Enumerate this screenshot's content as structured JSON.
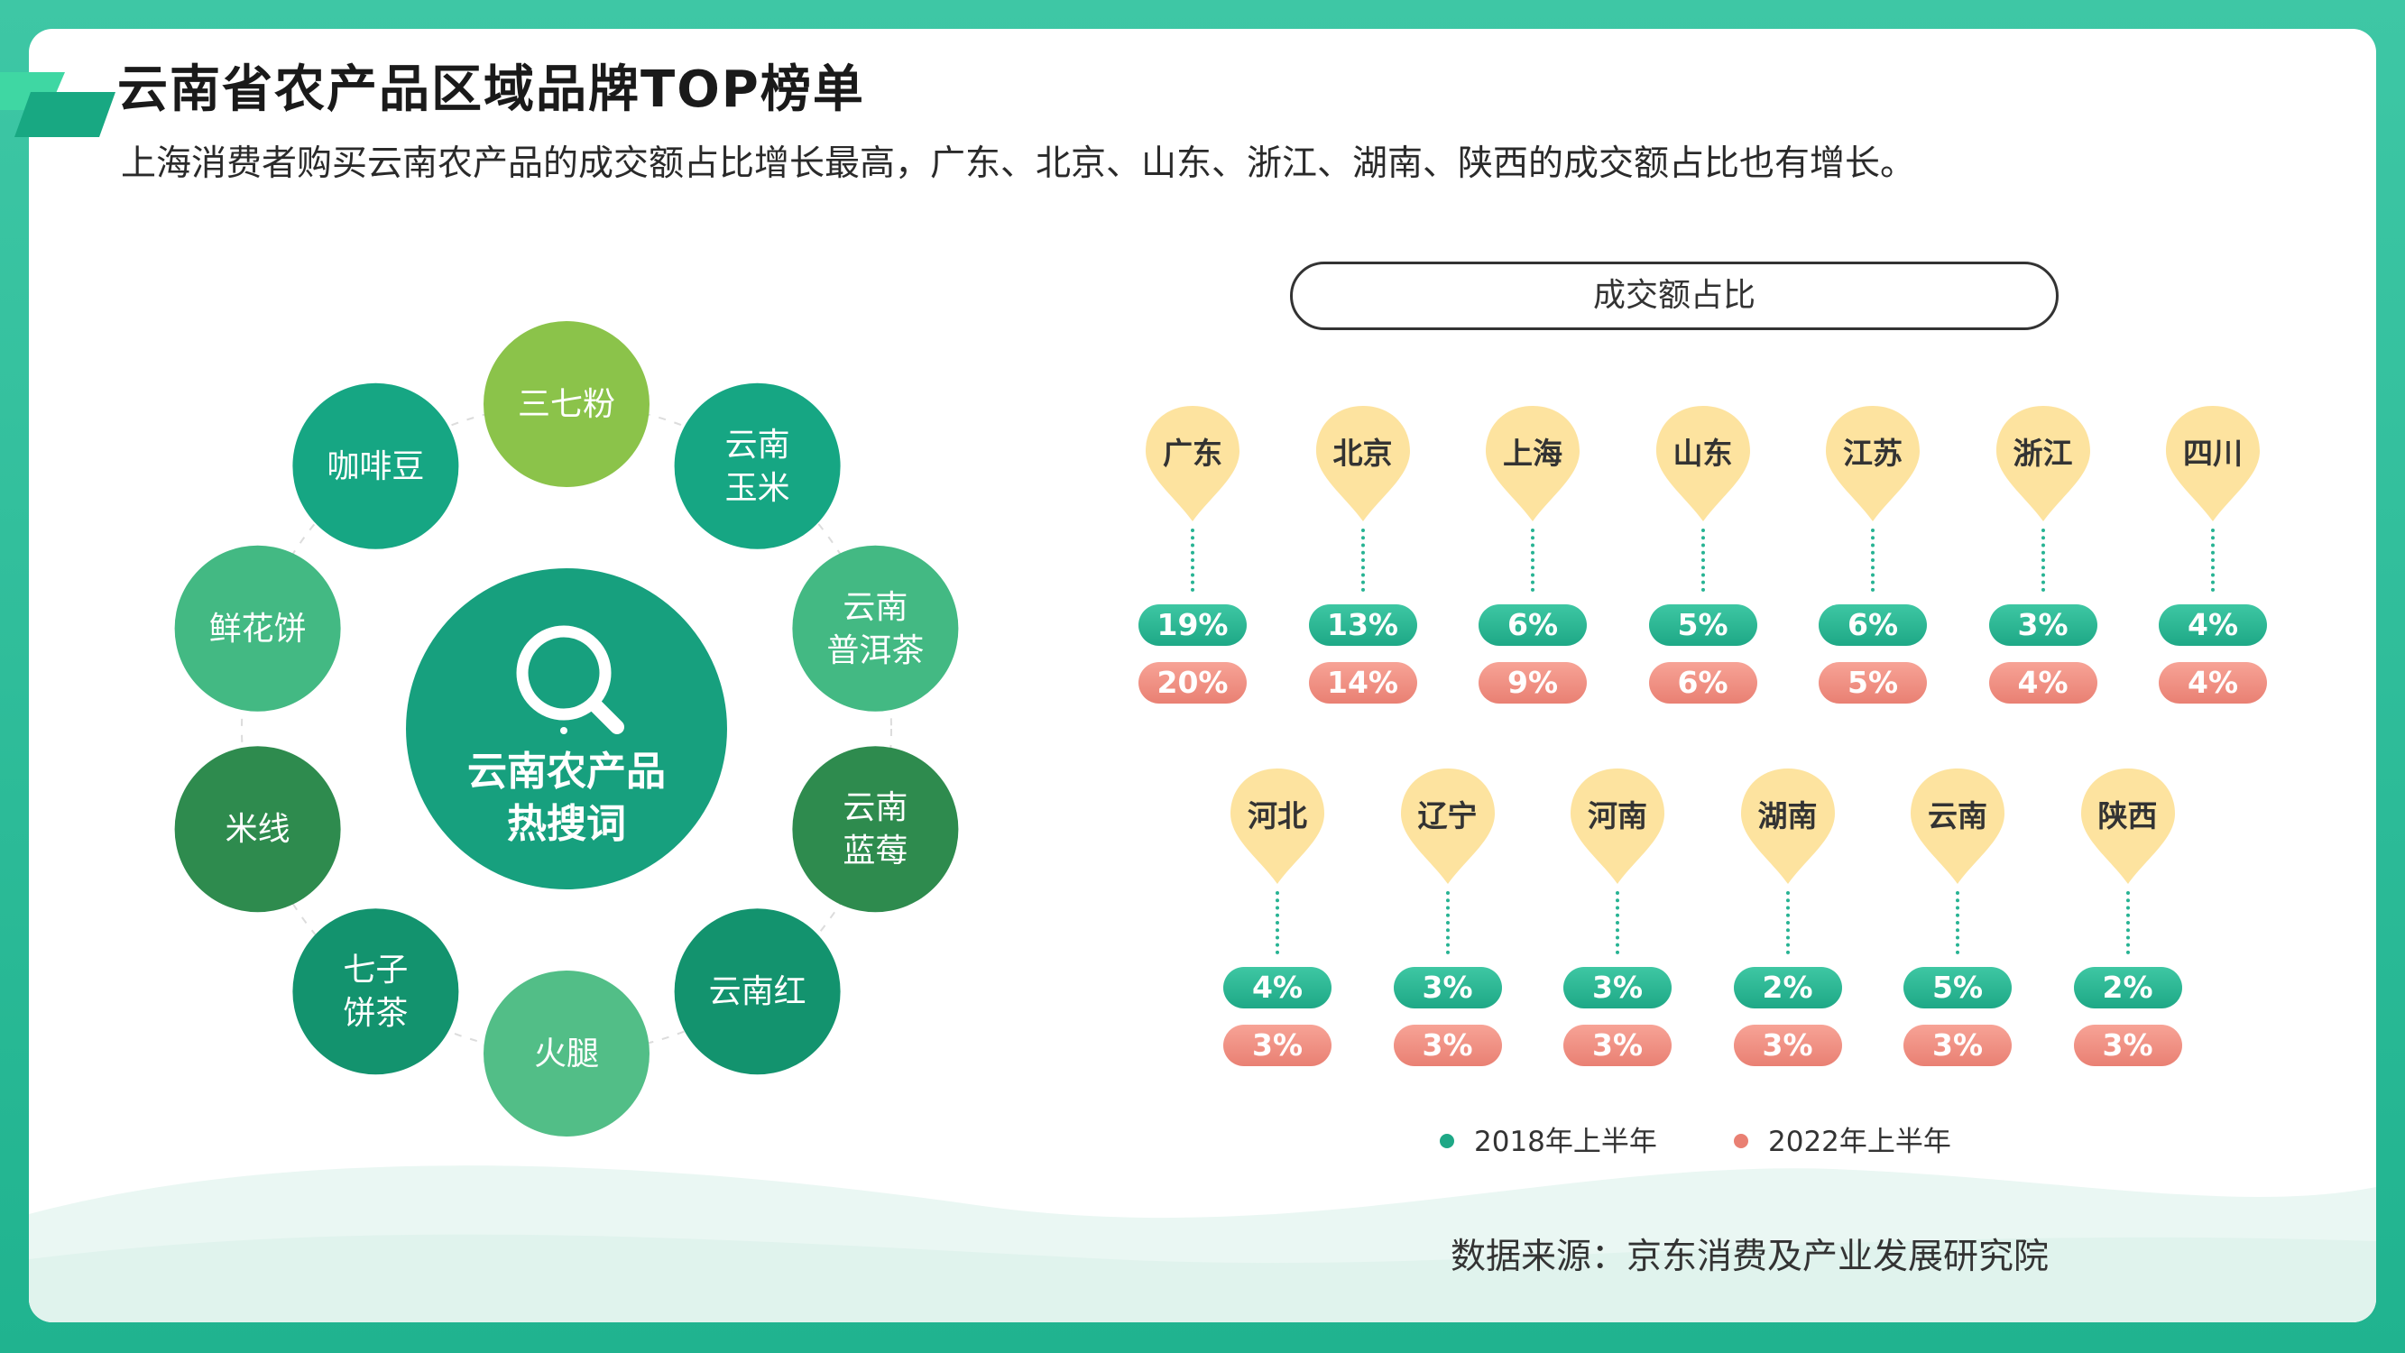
{
  "header": {
    "title": "云南省农产品区域品牌TOP榜单",
    "subtitle": "上海消费者购买云南农产品的成交额占比增长最高，广东、北京、山东、浙江、湖南、陕西的成交额占比也有增长。"
  },
  "wheel": {
    "center_lines": [
      "云南农产品",
      "热搜词"
    ],
    "center_icon": "search-icon",
    "items": [
      {
        "lines": [
          "三七粉"
        ],
        "color": "#8bc34a"
      },
      {
        "lines": [
          "云南",
          "玉米"
        ],
        "color": "#16a683"
      },
      {
        "lines": [
          "云南",
          "普洱茶"
        ],
        "color": "#43b983"
      },
      {
        "lines": [
          "云南",
          "蓝莓"
        ],
        "color": "#2e8b4e"
      },
      {
        "lines": [
          "云南红"
        ],
        "color": "#13936e"
      },
      {
        "lines": [
          "火腿"
        ],
        "color": "#52be87"
      },
      {
        "lines": [
          "七子",
          "饼茶"
        ],
        "color": "#13936e"
      },
      {
        "lines": [
          "米线"
        ],
        "color": "#2e8b4e"
      },
      {
        "lines": [
          "鲜花饼"
        ],
        "color": "#43b983"
      },
      {
        "lines": [
          "咖啡豆"
        ],
        "color": "#16a683"
      }
    ]
  },
  "chart_data": {
    "type": "table",
    "title": "成交额占比",
    "categories": [
      "广东",
      "北京",
      "上海",
      "山东",
      "江苏",
      "浙江",
      "四川",
      "河北",
      "辽宁",
      "河南",
      "湖南",
      "云南",
      "陕西"
    ],
    "series": [
      {
        "name": "2018年上半年",
        "values": [
          19,
          13,
          6,
          5,
          6,
          3,
          4,
          4,
          3,
          3,
          2,
          5,
          2
        ],
        "labels": [
          "19%",
          "13%",
          "6%",
          "5%",
          "6%",
          "3%",
          "4%",
          "4%",
          "3%",
          "3%",
          "2%",
          "5%",
          "2%"
        ],
        "color": "#1ea886"
      },
      {
        "name": "2022年上半年",
        "values": [
          20,
          14,
          9,
          6,
          5,
          4,
          4,
          3,
          3,
          3,
          3,
          3,
          3
        ],
        "labels": [
          "20%",
          "14%",
          "9%",
          "6%",
          "5%",
          "4%",
          "4%",
          "3%",
          "3%",
          "3%",
          "3%",
          "3%",
          "3%"
        ],
        "color": "#e98073"
      }
    ],
    "legend_position": "bottom"
  },
  "footer": {
    "source": "数据来源：京东消费及产业发展研究院"
  }
}
